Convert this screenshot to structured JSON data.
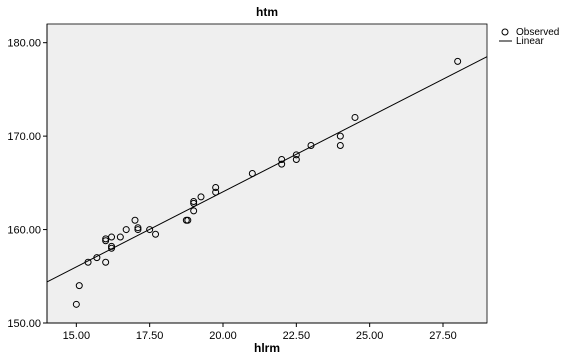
{
  "chart_data": {
    "type": "scatter",
    "title": "htm",
    "xlabel": "hlrm",
    "ylabel": "",
    "xlim": [
      14.0,
      29.0
    ],
    "ylim": [
      150.0,
      182.0
    ],
    "xticks": [
      15.0,
      17.5,
      20.0,
      22.5,
      25.0,
      27.5
    ],
    "xtick_labels": [
      "15.00",
      "17.50",
      "20.00",
      "22.50",
      "25.00",
      "27.50"
    ],
    "yticks": [
      150.0,
      160.0,
      170.0,
      180.0
    ],
    "ytick_labels": [
      "150.00",
      "160.00",
      "170.00",
      "180.00"
    ],
    "grid": false,
    "legend_position": "right",
    "background_color": "#efefef",
    "point_color": "#000000",
    "line_color": "#000000",
    "series": [
      {
        "name": "Observed",
        "kind": "points",
        "marker": "hollow-circle",
        "points": [
          {
            "x": 15.0,
            "y": 152.0
          },
          {
            "x": 15.1,
            "y": 154.0
          },
          {
            "x": 15.4,
            "y": 156.5
          },
          {
            "x": 15.7,
            "y": 157.0
          },
          {
            "x": 16.0,
            "y": 156.5
          },
          {
            "x": 16.0,
            "y": 158.8
          },
          {
            "x": 16.0,
            "y": 159.0
          },
          {
            "x": 16.2,
            "y": 158.0
          },
          {
            "x": 16.2,
            "y": 158.2
          },
          {
            "x": 16.2,
            "y": 159.2
          },
          {
            "x": 16.5,
            "y": 159.2
          },
          {
            "x": 16.7,
            "y": 160.0
          },
          {
            "x": 17.0,
            "y": 161.0
          },
          {
            "x": 17.1,
            "y": 160.0
          },
          {
            "x": 17.1,
            "y": 160.2
          },
          {
            "x": 17.5,
            "y": 160.0
          },
          {
            "x": 17.7,
            "y": 159.5
          },
          {
            "x": 18.75,
            "y": 161.0
          },
          {
            "x": 18.8,
            "y": 161.0
          },
          {
            "x": 19.0,
            "y": 162.0
          },
          {
            "x": 19.0,
            "y": 162.8
          },
          {
            "x": 19.0,
            "y": 163.0
          },
          {
            "x": 19.25,
            "y": 163.5
          },
          {
            "x": 19.75,
            "y": 164.0
          },
          {
            "x": 19.75,
            "y": 164.5
          },
          {
            "x": 21.0,
            "y": 166.0
          },
          {
            "x": 22.0,
            "y": 167.0
          },
          {
            "x": 22.0,
            "y": 167.5
          },
          {
            "x": 22.5,
            "y": 167.5
          },
          {
            "x": 22.5,
            "y": 168.0
          },
          {
            "x": 23.0,
            "y": 169.0
          },
          {
            "x": 24.0,
            "y": 169.0
          },
          {
            "x": 24.0,
            "y": 170.0
          },
          {
            "x": 24.5,
            "y": 172.0
          },
          {
            "x": 28.0,
            "y": 178.0
          }
        ]
      },
      {
        "name": "Linear",
        "kind": "line",
        "points": [
          {
            "x": 14.0,
            "y": 154.4
          },
          {
            "x": 29.0,
            "y": 178.5
          }
        ]
      }
    ]
  }
}
